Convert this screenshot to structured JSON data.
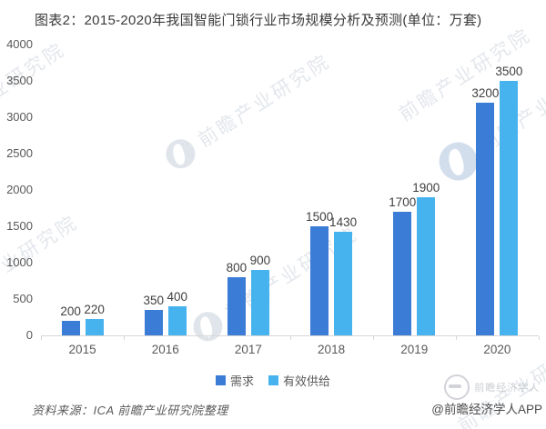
{
  "title": "图表2：2015-2020年我国智能门锁行业市场规模分析及预测(单位：万套)",
  "watermark": {
    "text": "前瞻产业研究院"
  },
  "colors": {
    "demand": "#3b7cd6",
    "supply": "#46b3ee",
    "axis": "#d6d6d6",
    "value_label": "#404040",
    "tick_label": "#595959"
  },
  "chart_data": {
    "type": "bar",
    "title": "图表2：2015-2020年我国智能门锁行业市场规模分析及预测",
    "unit": "万套",
    "categories": [
      "2015",
      "2016",
      "2017",
      "2018",
      "2019",
      "2020"
    ],
    "series": [
      {
        "name": "需求",
        "color": "#3b7cd6",
        "values": [
          200,
          350,
          800,
          1500,
          1700,
          3200
        ]
      },
      {
        "name": "有效供给",
        "color": "#46b3ee",
        "values": [
          220,
          400,
          900,
          1430,
          1900,
          3500
        ]
      }
    ],
    "ylim": [
      0,
      4000
    ],
    "yticks": [
      0,
      500,
      1000,
      1500,
      2000,
      2500,
      3000,
      3500,
      4000
    ],
    "grid": false,
    "legend_position": "bottom",
    "data_labels": true
  },
  "footer": {
    "source_note": "资料来源：ICA 前瞻产业研究院整理",
    "brand": "@前瞻经济学人APP",
    "brand_faint": "前瞻经济学人"
  }
}
